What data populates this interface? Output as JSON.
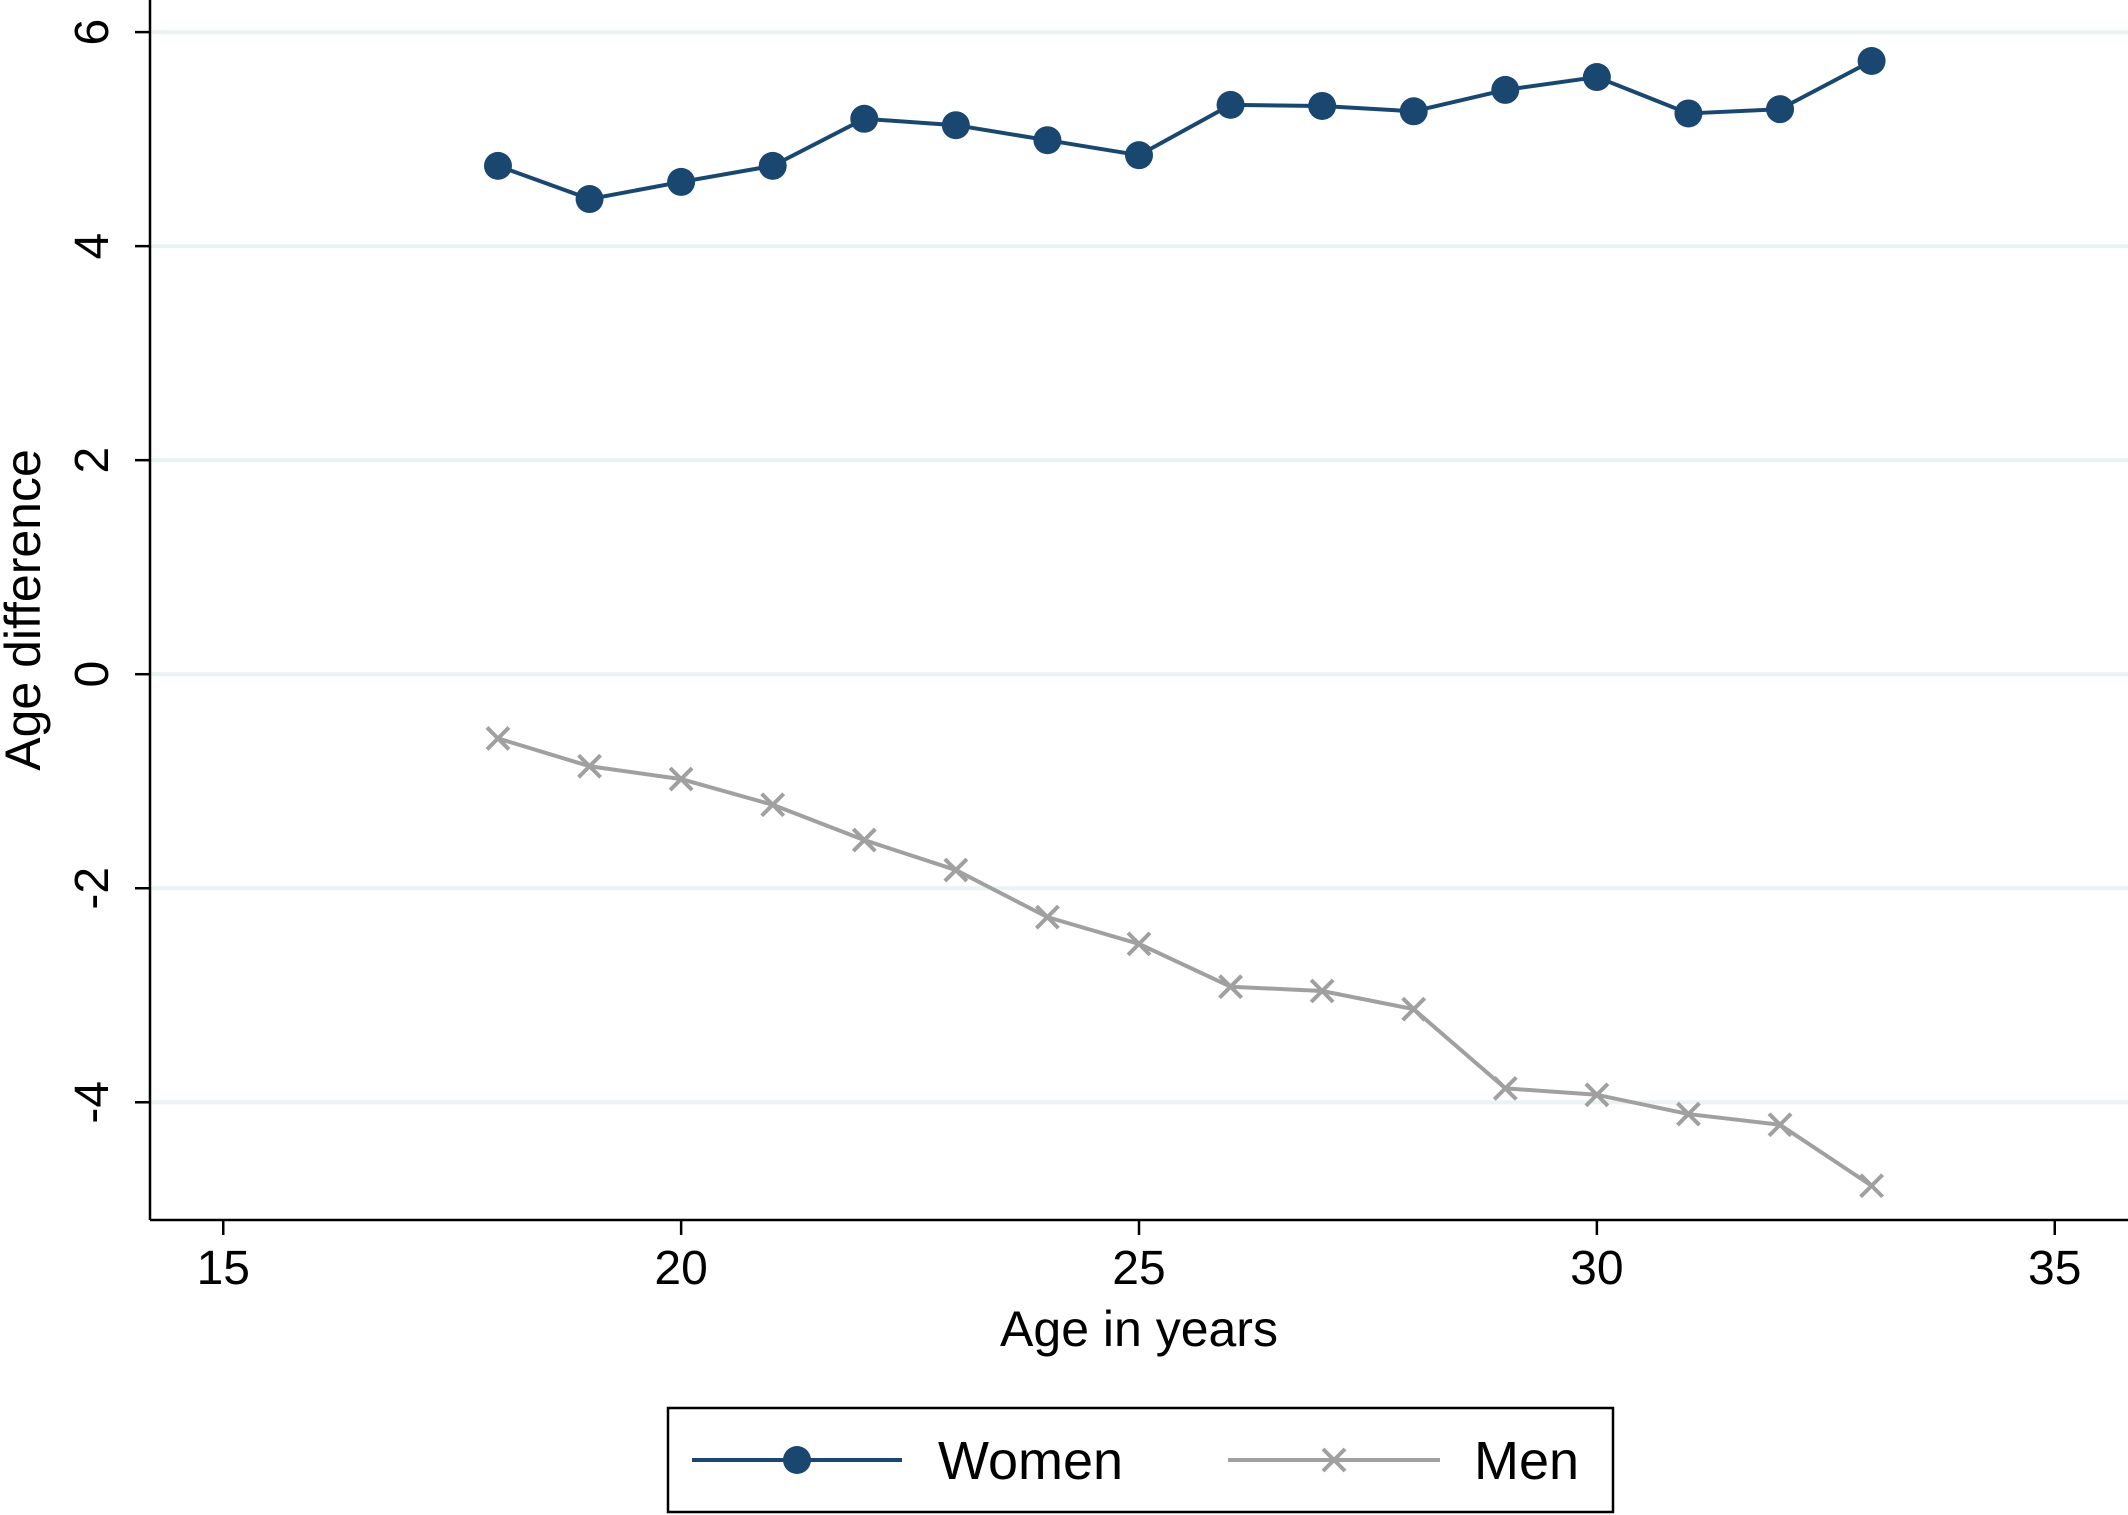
{
  "chart_data": {
    "type": "line",
    "title": "",
    "xlabel": "Age in years",
    "ylabel": "Age difference",
    "xlim": [
      14.2,
      35.8
    ],
    "ylim": [
      -5.1,
      6.3
    ],
    "xticks": [
      15,
      20,
      25,
      30,
      35
    ],
    "xtick_labels": [
      "15",
      "20",
      "25",
      "30",
      "35"
    ],
    "yticks": [
      -4,
      -2,
      0,
      2,
      4,
      6
    ],
    "ytick_labels": [
      "-4",
      "-2",
      "0",
      "2",
      "4",
      "6"
    ],
    "grid": "horizontal",
    "legend_position": "bottom",
    "x": [
      18,
      19,
      20,
      21,
      22,
      23,
      24,
      25,
      26,
      27,
      28,
      29,
      30,
      31,
      32,
      33
    ],
    "series": [
      {
        "name": "Women",
        "marker": "circle",
        "color": "#1a476f",
        "values": [
          4.75,
          4.44,
          4.6,
          4.75,
          5.19,
          5.13,
          4.99,
          4.85,
          5.32,
          5.31,
          5.26,
          5.46,
          5.58,
          5.24,
          5.28,
          5.73
        ]
      },
      {
        "name": "Men",
        "marker": "x",
        "color": "#a0a0a0",
        "values": [
          -0.6,
          -0.86,
          -0.98,
          -1.22,
          -1.55,
          -1.83,
          -2.27,
          -2.52,
          -2.92,
          -2.96,
          -3.13,
          -3.87,
          -3.93,
          -4.11,
          -4.21,
          -4.78
        ]
      }
    ]
  },
  "colors": {
    "grid": "#eaf2f3",
    "axis": "#000000"
  }
}
